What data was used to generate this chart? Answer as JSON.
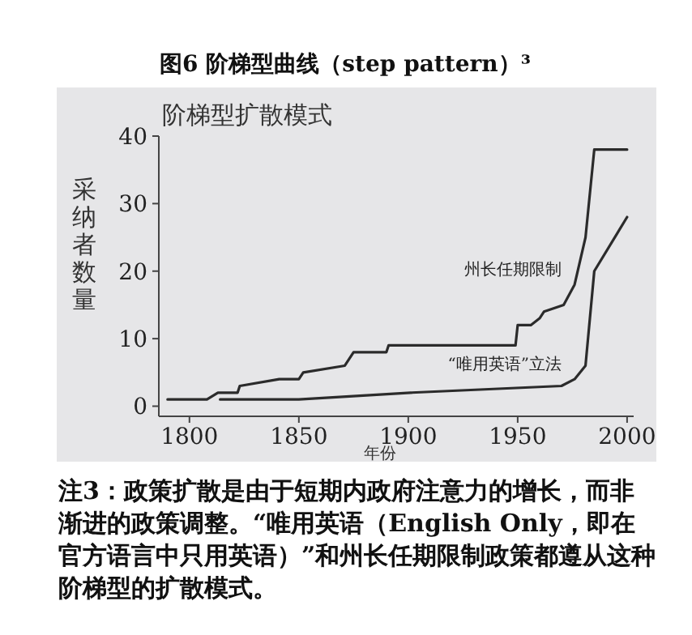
{
  "chart_data": {
    "type": "line",
    "title": "图6 阶梯型曲线（step pattern）³",
    "subtitle": "阶梯型扩散模式",
    "xlabel": "年份",
    "ylabel": "采纳者数量",
    "annotations": [
      "注3：政策扩散是由于短期内政府注意力的增长，而非渐进的政策调整。“唯用英语（English Only，即在官方语言中只用英语）”和州长任期限制政策都遵从这种阶梯型的扩散模式。"
    ],
    "series": [
      {
        "name": "州长任期限制",
        "color": "#2b2b2b",
        "x": [
          1790,
          1808,
          1813,
          1822,
          1823,
          1841,
          1850,
          1852,
          1871,
          1875,
          1890,
          1891,
          1949,
          1950,
          1956,
          1960,
          1962,
          1971,
          1976,
          1981,
          1985,
          2000
        ],
        "values": [
          1,
          1,
          2,
          2,
          3,
          4,
          4,
          5,
          6,
          8,
          8,
          9,
          9,
          12,
          12,
          13,
          14,
          15,
          18,
          25,
          38,
          38
        ]
      },
      {
        "name": "“唯用英语”立法",
        "color": "#2b2b2b",
        "x": [
          1814,
          1850,
          1901,
          1970,
          1976,
          1981,
          1985,
          2000
        ],
        "values": [
          1,
          1,
          2,
          3,
          4,
          6,
          20,
          28
        ]
      }
    ],
    "xlim": [
      1786,
      2003
    ],
    "ylim": [
      -1.5,
      40
    ],
    "xticks": [
      1800,
      1850,
      1900,
      1950,
      2000
    ],
    "yticks": [
      0,
      10,
      20,
      30,
      40
    ],
    "grid": false,
    "marker": "none",
    "line_style": "solid"
  }
}
